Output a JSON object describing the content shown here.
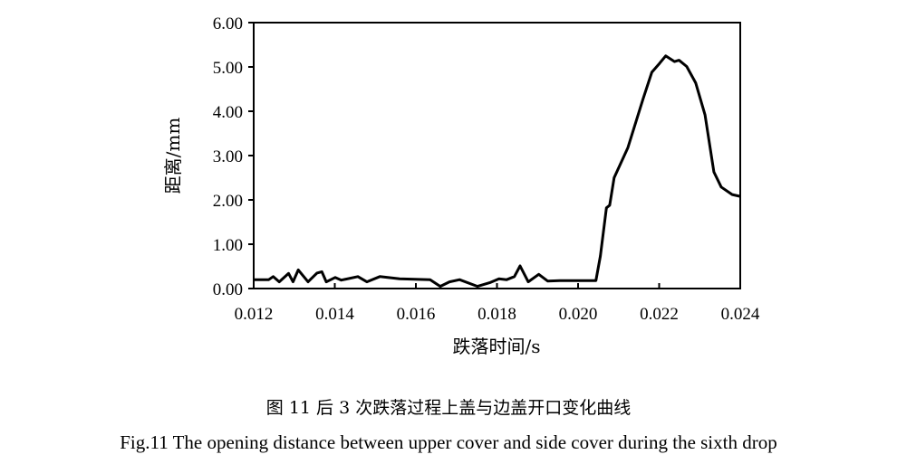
{
  "chart_data": {
    "type": "line",
    "xlabel": "跌落时间/s",
    "ylabel": "距离/mm",
    "xlim": [
      0.012,
      0.024
    ],
    "ylim": [
      0,
      6
    ],
    "xticks": [
      "0.012",
      "0.014",
      "0.016",
      "0.018",
      "0.020",
      "0.022",
      "0.024"
    ],
    "yticks": [
      "0.00",
      "1.00",
      "2.00",
      "3.00",
      "4.00",
      "5.00",
      "6.00"
    ],
    "grid": false,
    "legend": "none",
    "line_color": "#000000",
    "x": [
      0.012,
      0.01237,
      0.01248,
      0.01263,
      0.01286,
      0.01297,
      0.0131,
      0.01334,
      0.01356,
      0.01368,
      0.01379,
      0.01401,
      0.01416,
      0.01457,
      0.01479,
      0.01511,
      0.0156,
      0.01635,
      0.0166,
      0.01683,
      0.01708,
      0.01752,
      0.01782,
      0.01805,
      0.01824,
      0.01843,
      0.01857,
      0.01877,
      0.01903,
      0.01925,
      0.01955,
      0.02044,
      0.02055,
      0.0207,
      0.02078,
      0.02089,
      0.02123,
      0.0216,
      0.02182,
      0.02201,
      0.02216,
      0.02238,
      0.02249,
      0.02268,
      0.0229,
      0.02313,
      0.02335,
      0.02353,
      0.0238,
      0.024
    ],
    "y": [
      0.2,
      0.2,
      0.27,
      0.15,
      0.34,
      0.15,
      0.42,
      0.15,
      0.35,
      0.38,
      0.15,
      0.25,
      0.19,
      0.27,
      0.15,
      0.27,
      0.22,
      0.2,
      0.05,
      0.15,
      0.2,
      0.05,
      0.13,
      0.22,
      0.2,
      0.27,
      0.51,
      0.15,
      0.32,
      0.17,
      0.18,
      0.18,
      0.73,
      1.82,
      1.88,
      2.5,
      3.18,
      4.27,
      4.88,
      5.08,
      5.25,
      5.12,
      5.15,
      5.01,
      4.64,
      3.92,
      2.63,
      2.29,
      2.12,
      2.08
    ]
  },
  "caption": {
    "chinese": "图 11  后 3 次跌落过程上盖与边盖开口变化曲线",
    "english": "Fig.11 The opening distance between upper cover and side cover during the sixth drop"
  }
}
